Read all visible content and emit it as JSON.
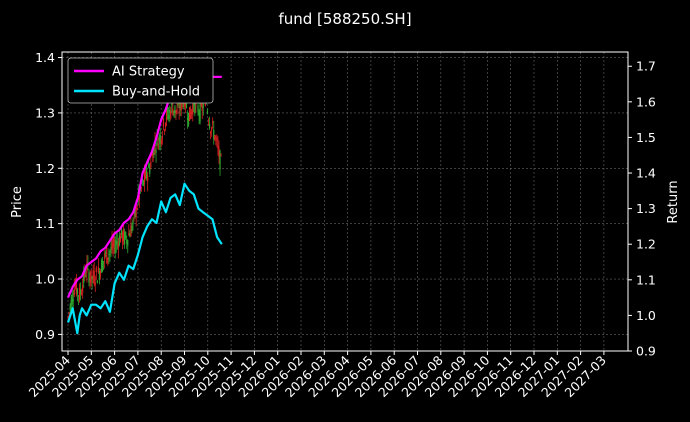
{
  "chart_data": {
    "type": "line",
    "title": "fund [588250.SH]",
    "xlabel": "",
    "ylabel": "Price",
    "y2label": "Return",
    "ylim": [
      0.87,
      1.41
    ],
    "y2lim": [
      0.9,
      1.74
    ],
    "yticks": [
      0.9,
      1.0,
      1.1,
      1.2,
      1.3,
      1.4
    ],
    "y2ticks": [
      0.9,
      1.0,
      1.1,
      1.2,
      1.3,
      1.4,
      1.5,
      1.6,
      1.7
    ],
    "xticks": [
      "2025-04",
      "2025-05",
      "2025-06",
      "2025-07",
      "2025-08",
      "2025-09",
      "2025-10",
      "2025-11",
      "2025-12",
      "2026-01",
      "2026-02",
      "2026-03",
      "2026-04",
      "2026-05",
      "2026-06",
      "2026-07",
      "2026-08",
      "2026-09",
      "2026-10",
      "2026-11",
      "2026-12",
      "2027-01",
      "2027-02",
      "2027-03"
    ],
    "grid": true,
    "legend_position": "top-left",
    "candle_colors": {
      "up": "#d62020",
      "down": "#2ea82e"
    },
    "candles_anchor": [
      {
        "x": 0.0,
        "p": 0.93
      },
      {
        "x": 0.3,
        "p": 0.99
      },
      {
        "x": 0.5,
        "p": 0.97
      },
      {
        "x": 0.8,
        "p": 1.02
      },
      {
        "x": 1.0,
        "p": 1.0
      },
      {
        "x": 1.3,
        "p": 1.01
      },
      {
        "x": 1.6,
        "p": 1.04
      },
      {
        "x": 1.8,
        "p": 1.05
      },
      {
        "x": 2.0,
        "p": 1.06
      },
      {
        "x": 2.3,
        "p": 1.08
      },
      {
        "x": 2.5,
        "p": 1.07
      },
      {
        "x": 2.8,
        "p": 1.1
      },
      {
        "x": 3.0,
        "p": 1.14
      },
      {
        "x": 3.2,
        "p": 1.17
      },
      {
        "x": 3.5,
        "p": 1.2
      },
      {
        "x": 3.7,
        "p": 1.24
      },
      {
        "x": 4.0,
        "p": 1.26
      },
      {
        "x": 4.2,
        "p": 1.29
      },
      {
        "x": 4.5,
        "p": 1.31
      },
      {
        "x": 4.7,
        "p": 1.3
      },
      {
        "x": 5.0,
        "p": 1.33
      },
      {
        "x": 5.2,
        "p": 1.29
      },
      {
        "x": 5.4,
        "p": 1.32
      },
      {
        "x": 5.7,
        "p": 1.3
      },
      {
        "x": 5.9,
        "p": 1.33
      },
      {
        "x": 6.1,
        "p": 1.28
      },
      {
        "x": 6.3,
        "p": 1.26
      },
      {
        "x": 6.5,
        "p": 1.22
      },
      {
        "x": 6.6,
        "p": 1.2
      }
    ],
    "series": [
      {
        "name": "AI Strategy",
        "axis": "return",
        "color": "#ff00ff",
        "x": [
          0.0,
          0.2,
          0.4,
          0.6,
          0.8,
          1.0,
          1.2,
          1.4,
          1.6,
          1.8,
          2.0,
          2.2,
          2.4,
          2.6,
          2.8,
          3.0,
          3.2,
          3.4,
          3.6,
          3.8,
          4.0,
          4.2,
          4.4,
          4.6,
          4.8,
          5.0,
          5.2,
          5.4,
          5.6,
          5.8,
          6.0,
          6.2,
          6.4,
          6.6
        ],
        "values": [
          1.05,
          1.08,
          1.1,
          1.11,
          1.14,
          1.15,
          1.16,
          1.18,
          1.19,
          1.21,
          1.23,
          1.24,
          1.26,
          1.27,
          1.29,
          1.33,
          1.4,
          1.43,
          1.46,
          1.5,
          1.55,
          1.58,
          1.62,
          1.63,
          1.67,
          1.66,
          1.67,
          1.67,
          1.67,
          1.67,
          1.67,
          1.67,
          1.67,
          1.67
        ]
      },
      {
        "name": "Buy-and-Hold",
        "axis": "return",
        "color": "#00e5ff",
        "x": [
          0.0,
          0.2,
          0.4,
          0.5,
          0.6,
          0.8,
          1.0,
          1.2,
          1.4,
          1.6,
          1.8,
          2.0,
          2.2,
          2.4,
          2.6,
          2.8,
          3.0,
          3.2,
          3.4,
          3.6,
          3.8,
          4.0,
          4.2,
          4.4,
          4.6,
          4.8,
          5.0,
          5.2,
          5.4,
          5.6,
          5.8,
          6.0,
          6.2,
          6.4,
          6.6
        ],
        "values": [
          0.98,
          1.02,
          0.95,
          1.0,
          1.02,
          1.0,
          1.03,
          1.03,
          1.02,
          1.04,
          1.01,
          1.09,
          1.12,
          1.1,
          1.14,
          1.13,
          1.17,
          1.22,
          1.25,
          1.27,
          1.26,
          1.32,
          1.29,
          1.33,
          1.34,
          1.31,
          1.37,
          1.35,
          1.34,
          1.3,
          1.29,
          1.28,
          1.27,
          1.22,
          1.2
        ]
      }
    ]
  }
}
